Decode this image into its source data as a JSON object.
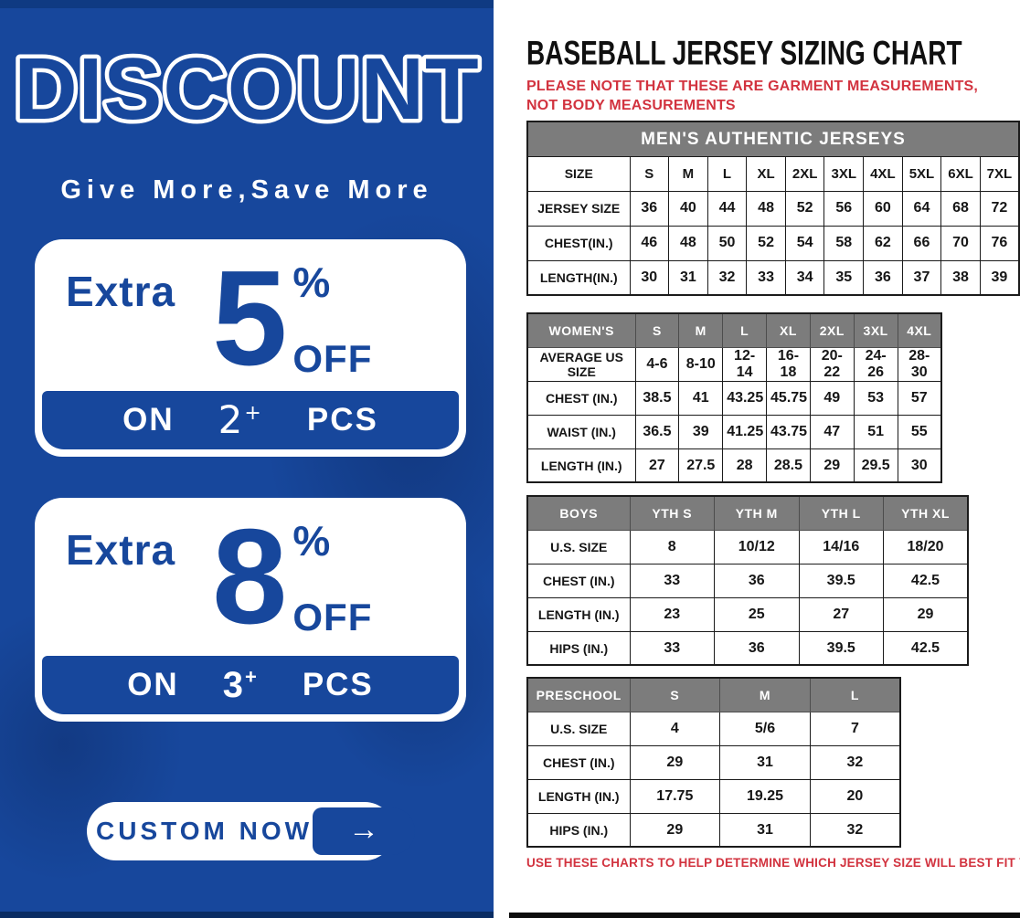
{
  "colors": {
    "panel_blue": "#17479c",
    "header_gray": "#7c7c7c",
    "note_red": "#d2333f",
    "table_border": "#1b1b1b"
  },
  "left_panel": {
    "title": "DISCOUNT",
    "subtitle": "Give More,Save More",
    "offers": [
      {
        "extra": "Extra",
        "percent": "5",
        "percent_sign": "%",
        "off_label": "OFF",
        "on_label": "ON",
        "quantity": "2",
        "plus": "+",
        "pcs_label": "PCS"
      },
      {
        "extra": "Extra",
        "percent": "8",
        "percent_sign": "%",
        "off_label": "OFF",
        "on_label": "ON",
        "quantity": "3",
        "plus": "+",
        "pcs_label": "PCS"
      }
    ],
    "cta_label": "CUSTOM NOW",
    "cta_arrow": "→"
  },
  "right_panel": {
    "title": "BASEBALL JERSEY SIZING CHART",
    "top_note": "PLEASE NOTE THAT THESE ARE GARMENT MEASUREMENTS, NOT BODY MEASUREMENTS",
    "bottom_note": "USE THESE CHARTS TO HELP DETERMINE WHICH JERSEY SIZE WILL BEST FIT YOU.",
    "tables": [
      {
        "key": "mens",
        "band_title": "MEN'S AUTHENTIC JERSEYS",
        "gray_header": false,
        "header": [
          "SIZE",
          "S",
          "M",
          "L",
          "XL",
          "2XL",
          "3XL",
          "4XL",
          "5XL",
          "6XL",
          "7XL"
        ],
        "rows": [
          [
            "JERSEY SIZE",
            "36",
            "40",
            "44",
            "48",
            "52",
            "56",
            "60",
            "64",
            "68",
            "72"
          ],
          [
            "CHEST(IN.)",
            "46",
            "48",
            "50",
            "52",
            "54",
            "58",
            "62",
            "66",
            "70",
            "76"
          ],
          [
            "LENGTH(IN.)",
            "30",
            "31",
            "32",
            "33",
            "34",
            "35",
            "36",
            "37",
            "38",
            "39"
          ]
        ]
      },
      {
        "key": "womens",
        "gray_header": true,
        "header": [
          "WOMEN'S",
          "S",
          "M",
          "L",
          "XL",
          "2XL",
          "3XL",
          "4XL"
        ],
        "rows": [
          [
            "AVERAGE US SIZE",
            "4-6",
            "8-10",
            "12-14",
            "16-18",
            "20-22",
            "24-26",
            "28-30"
          ],
          [
            "CHEST (IN.)",
            "38.5",
            "41",
            "43.25",
            "45.75",
            "49",
            "53",
            "57"
          ],
          [
            "WAIST (IN.)",
            "36.5",
            "39",
            "41.25",
            "43.75",
            "47",
            "51",
            "55"
          ],
          [
            "LENGTH (IN.)",
            "27",
            "27.5",
            "28",
            "28.5",
            "29",
            "29.5",
            "30"
          ]
        ]
      },
      {
        "key": "boys",
        "gray_header": true,
        "header": [
          "BOYS",
          "YTH S",
          "YTH M",
          "YTH L",
          "YTH XL"
        ],
        "rows": [
          [
            "U.S. SIZE",
            "8",
            "10/12",
            "14/16",
            "18/20"
          ],
          [
            "CHEST (IN.)",
            "33",
            "36",
            "39.5",
            "42.5"
          ],
          [
            "LENGTH (IN.)",
            "23",
            "25",
            "27",
            "29"
          ],
          [
            "HIPS (IN.)",
            "33",
            "36",
            "39.5",
            "42.5"
          ]
        ]
      },
      {
        "key": "preschool",
        "gray_header": true,
        "header": [
          "PRESCHOOL",
          "S",
          "M",
          "L"
        ],
        "rows": [
          [
            "U.S. SIZE",
            "4",
            "5/6",
            "7"
          ],
          [
            "CHEST (IN.)",
            "29",
            "31",
            "32"
          ],
          [
            "LENGTH (IN.)",
            "17.75",
            "19.25",
            "20"
          ],
          [
            "HIPS (IN.)",
            "29",
            "31",
            "32"
          ]
        ]
      }
    ]
  }
}
